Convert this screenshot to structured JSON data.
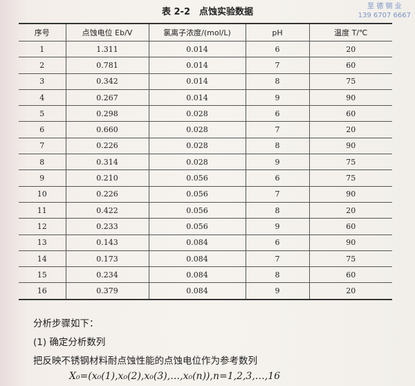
{
  "title": "表 2-2　点蚀实验数据",
  "watermark": {
    "line1": "至 德 钢 业",
    "line2": "139 6707 6667"
  },
  "table": {
    "headers": [
      "序号",
      "点蚀电位 Eb/V",
      "氯离子浓度/(mol/L)",
      "pH",
      "温度 T/℃"
    ],
    "rows": [
      [
        "1",
        "1.311",
        "0.014",
        "6",
        "20"
      ],
      [
        "2",
        "0.781",
        "0.014",
        "7",
        "60"
      ],
      [
        "3",
        "0.342",
        "0.014",
        "8",
        "75"
      ],
      [
        "4",
        "0.267",
        "0.014",
        "9",
        "90"
      ],
      [
        "5",
        "0.298",
        "0.028",
        "6",
        "60"
      ],
      [
        "6",
        "0.660",
        "0.028",
        "7",
        "20"
      ],
      [
        "7",
        "0.226",
        "0.028",
        "8",
        "90"
      ],
      [
        "8",
        "0.314",
        "0.028",
        "9",
        "75"
      ],
      [
        "9",
        "0.210",
        "0.056",
        "6",
        "75"
      ],
      [
        "10",
        "0.226",
        "0.056",
        "7",
        "90"
      ],
      [
        "11",
        "0.422",
        "0.056",
        "8",
        "20"
      ],
      [
        "12",
        "0.233",
        "0.056",
        "9",
        "60"
      ],
      [
        "13",
        "0.143",
        "0.084",
        "6",
        "90"
      ],
      [
        "14",
        "0.173",
        "0.084",
        "7",
        "75"
      ],
      [
        "15",
        "0.234",
        "0.084",
        "8",
        "60"
      ],
      [
        "16",
        "0.379",
        "0.084",
        "9",
        "20"
      ]
    ]
  },
  "text": {
    "p1": "分析步骤如下：",
    "p2": "(1) 确定分析数列",
    "p3": "把反映不锈钢材料耐点蚀性能的点蚀电位作为参考数列",
    "formula": "X₀=(x₀(1),x₀(2),x₀(3),…,x₀(n)),n=1,2,3,…,16"
  }
}
